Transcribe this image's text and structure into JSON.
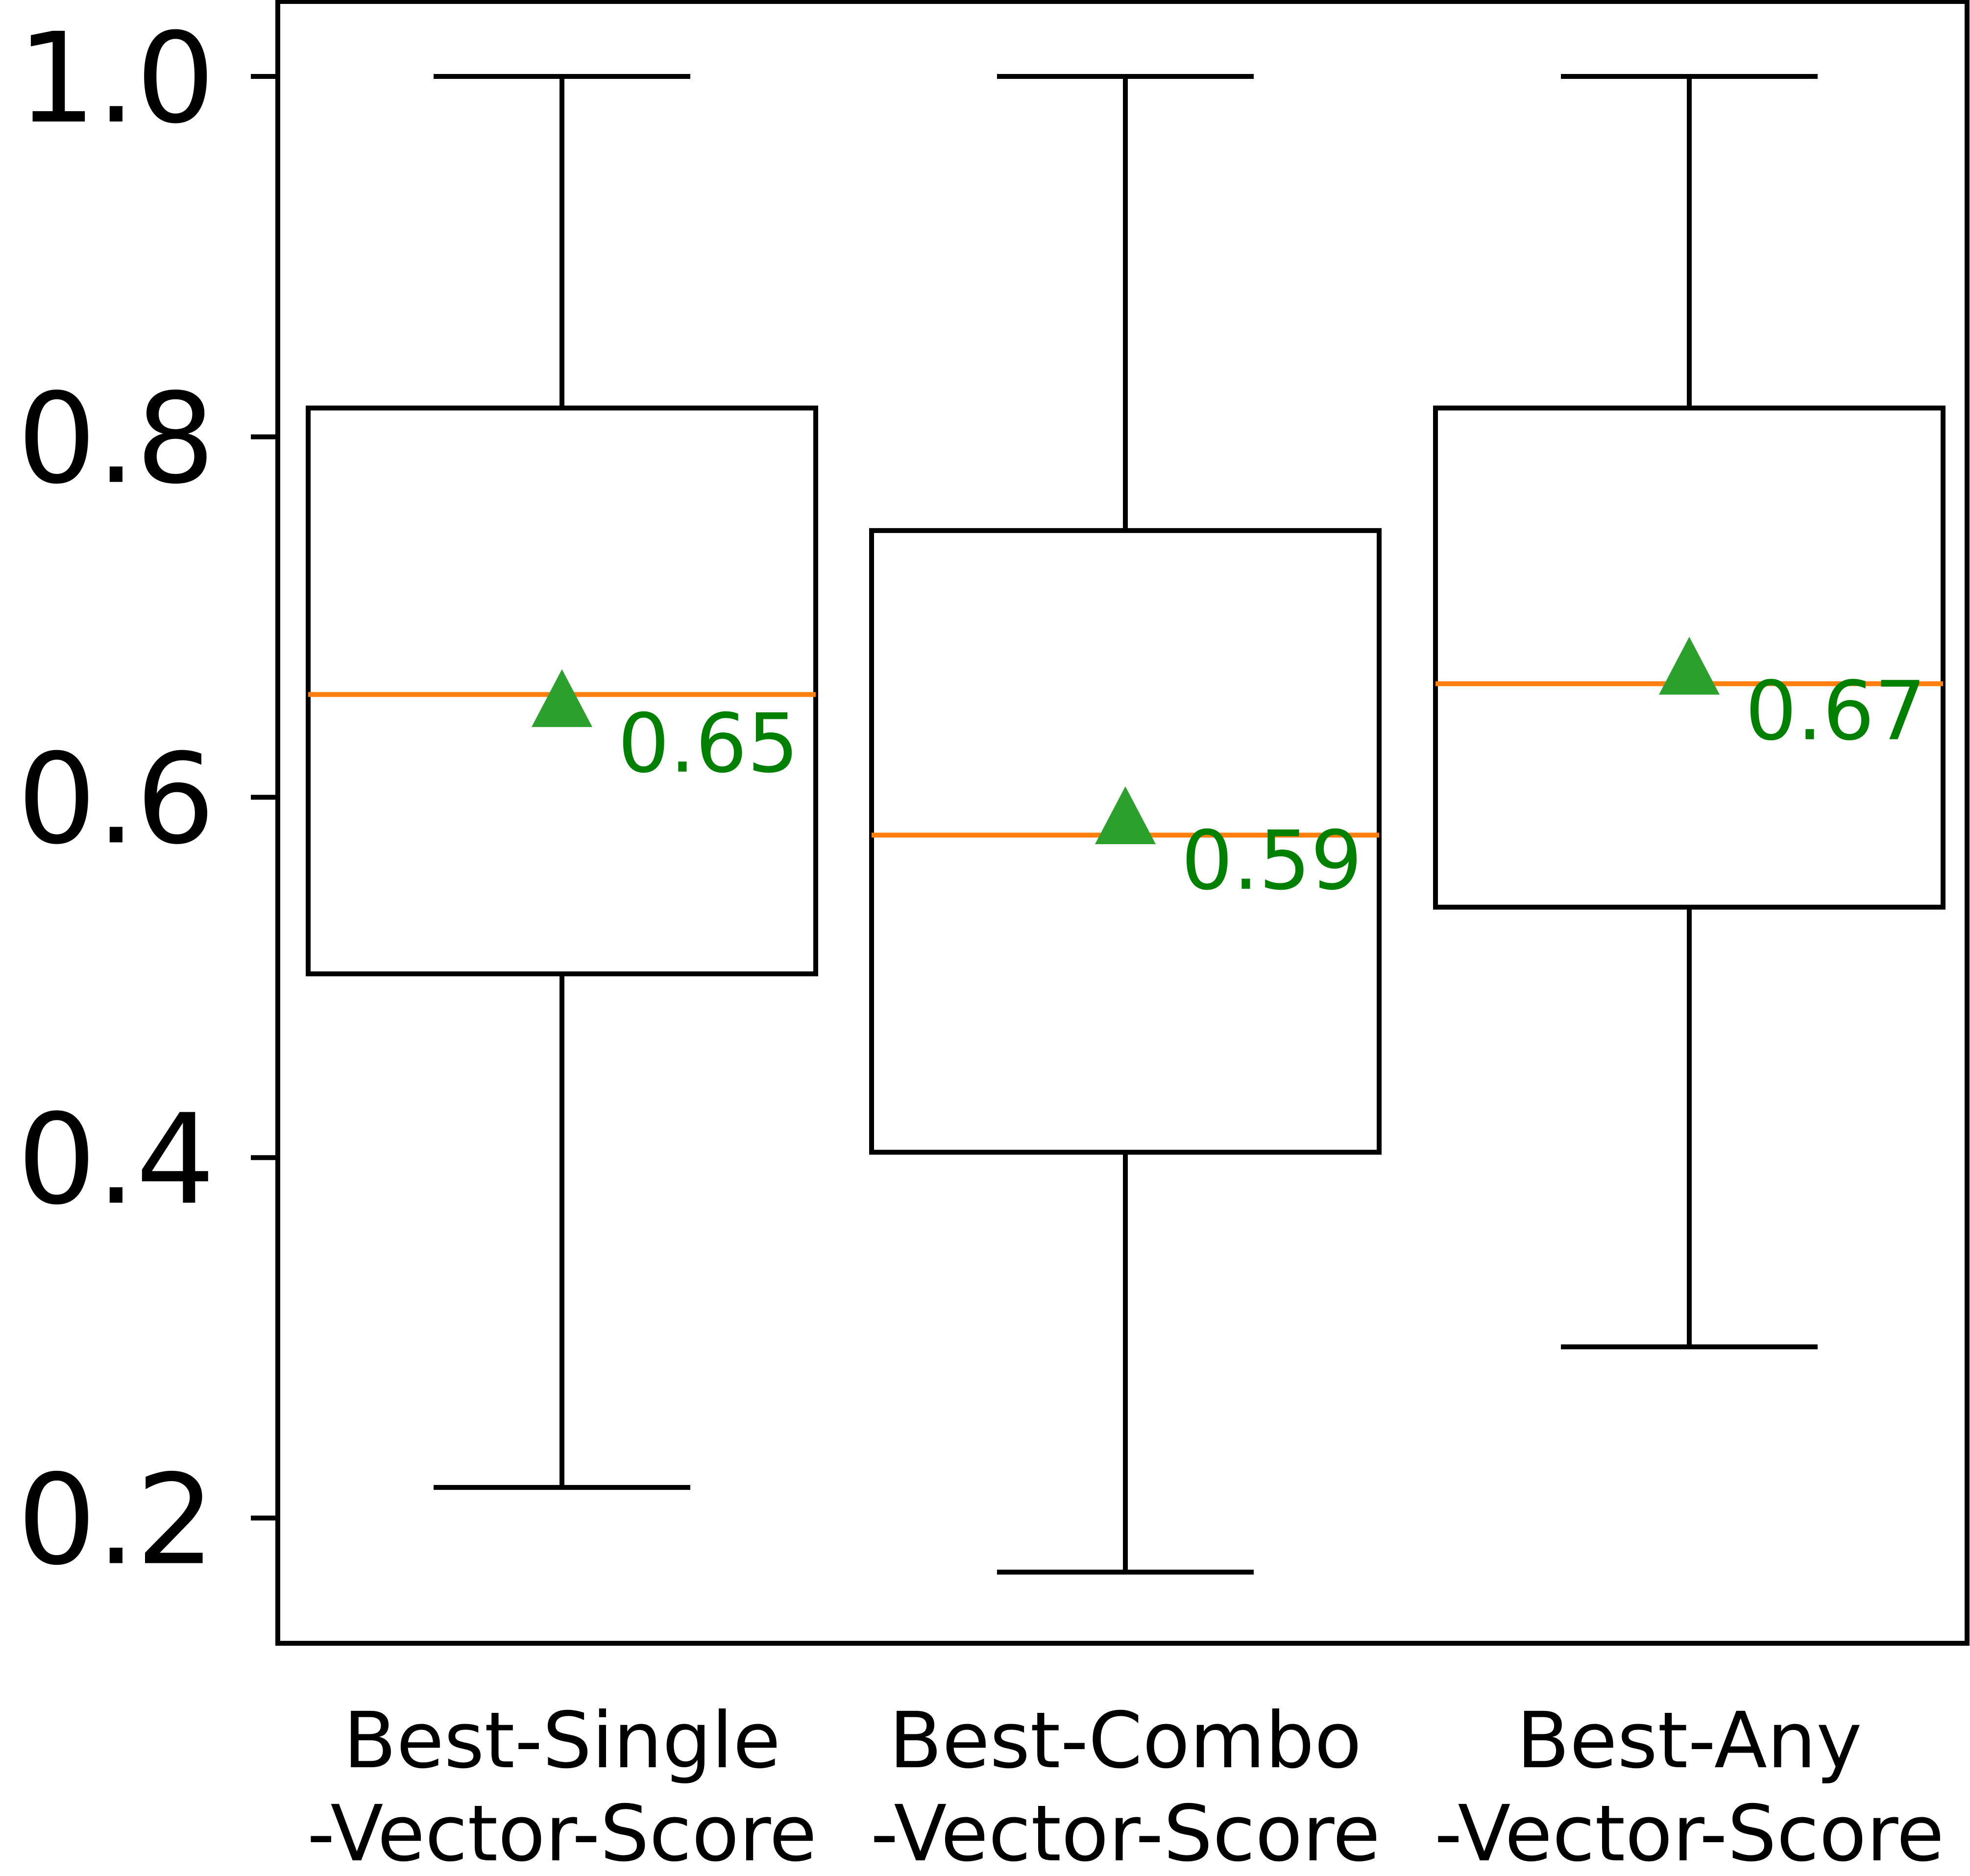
{
  "chart_data": {
    "type": "box",
    "title": "",
    "xlabel": "",
    "ylabel": "",
    "ylim": [
      0.13,
      1.04
    ],
    "yticks": [
      "1.0",
      "0.8",
      "0.6",
      "0.4",
      "0.2"
    ],
    "ytick_values": [
      1.0,
      0.8,
      0.6,
      0.4,
      0.2
    ],
    "grid": false,
    "legend": "none",
    "colors": {
      "box": "#000000",
      "median": "#ff7f0e",
      "mean": "#2ca02c",
      "mean_label": "#008000"
    },
    "categories": [
      [
        "Best-Single",
        "-Vector-Score"
      ],
      [
        "Best-Combo",
        "-Vector-Score"
      ],
      [
        "Best-Any",
        "-Vector-Score"
      ]
    ],
    "boxes": [
      {
        "whisker_low": 0.217,
        "q1": 0.502,
        "median": 0.657,
        "q3": 0.816,
        "whisker_high": 1.0,
        "mean": 0.655,
        "mean_label": "0.65"
      },
      {
        "whisker_low": 0.17,
        "q1": 0.403,
        "median": 0.579,
        "q3": 0.748,
        "whisker_high": 1.0,
        "mean": 0.59,
        "mean_label": "0.59"
      },
      {
        "whisker_low": 0.295,
        "q1": 0.539,
        "median": 0.663,
        "q3": 0.816,
        "whisker_high": 1.0,
        "mean": 0.673,
        "mean_label": "0.67"
      }
    ]
  }
}
